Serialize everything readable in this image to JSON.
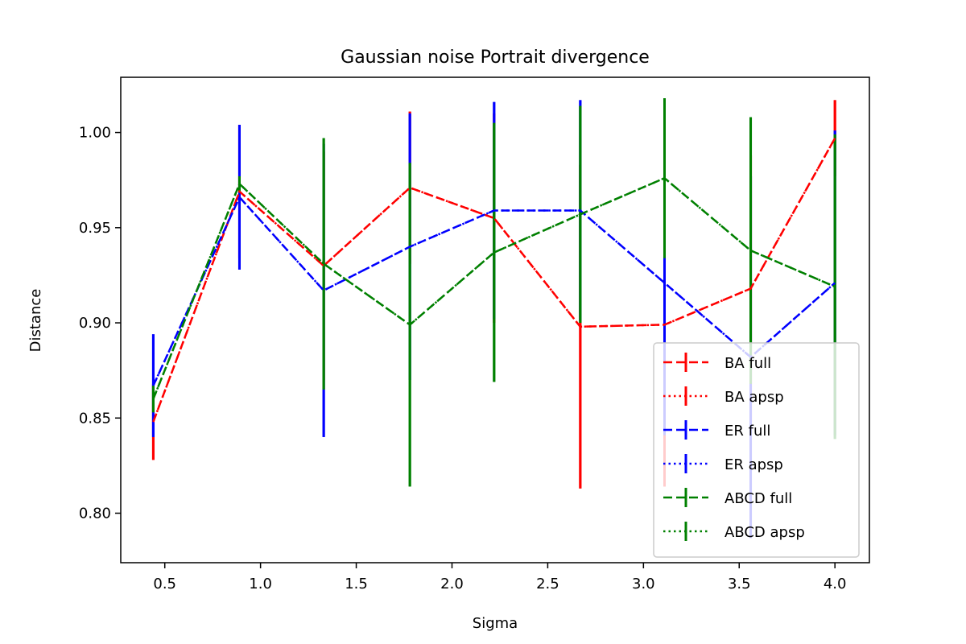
{
  "chart_data": {
    "type": "line",
    "title": "Gaussian noise Portrait divergence",
    "xlabel": "Sigma",
    "ylabel": "Distance",
    "xlim": [
      0.27,
      4.18
    ],
    "ylim": [
      0.774,
      1.029
    ],
    "xticks": [
      0.5,
      1.0,
      1.5,
      2.0,
      2.5,
      3.0,
      3.5,
      4.0
    ],
    "xtick_labels": [
      "0.5",
      "1.0",
      "1.5",
      "2.0",
      "2.5",
      "3.0",
      "3.5",
      "4.0"
    ],
    "yticks": [
      0.8,
      0.85,
      0.9,
      0.95,
      1.0
    ],
    "ytick_labels": [
      "0.80",
      "0.85",
      "0.90",
      "0.95",
      "1.00"
    ],
    "x": [
      0.44,
      0.89,
      1.33,
      1.78,
      2.22,
      2.67,
      3.11,
      3.56,
      4.0
    ],
    "grid": false,
    "legend_position": "lower-right",
    "series": [
      {
        "name": "BA full",
        "color": "#ff0000",
        "linestyle": "dashed",
        "y": [
          0.848,
          0.969,
          0.93,
          0.971,
          0.955,
          0.898,
          0.899,
          0.918,
          0.997
        ],
        "yerr": [
          0.02,
          0.035,
          0.06,
          0.04,
          0.055,
          0.085,
          0.085,
          0.07,
          0.02
        ]
      },
      {
        "name": "BA apsp",
        "color": "#ff0000",
        "linestyle": "dotted",
        "y": [
          0.848,
          0.969,
          0.93,
          0.971,
          0.955,
          0.898,
          0.899,
          0.918,
          0.997
        ],
        "yerr": [
          0.02,
          0.035,
          0.06,
          0.04,
          0.055,
          0.085,
          0.085,
          0.07,
          0.02
        ]
      },
      {
        "name": "ER full",
        "color": "#0000ff",
        "linestyle": "dashed",
        "y": [
          0.867,
          0.966,
          0.917,
          0.94,
          0.959,
          0.959,
          0.921,
          0.882,
          0.921
        ],
        "yerr": [
          0.027,
          0.038,
          0.077,
          0.07,
          0.057,
          0.058,
          0.08,
          0.095,
          0.08
        ]
      },
      {
        "name": "ER apsp",
        "color": "#0000ff",
        "linestyle": "dotted",
        "y": [
          0.867,
          0.966,
          0.917,
          0.94,
          0.959,
          0.959,
          0.921,
          0.882,
          0.921
        ],
        "yerr": [
          0.027,
          0.038,
          0.077,
          0.07,
          0.057,
          0.058,
          0.08,
          0.095,
          0.08
        ]
      },
      {
        "name": "ABCD full",
        "color": "#008000",
        "linestyle": "dashed",
        "y": [
          0.86,
          0.973,
          0.931,
          0.899,
          0.937,
          0.957,
          0.976,
          0.938,
          0.919
        ],
        "yerr": [
          0.007,
          0.004,
          0.066,
          0.085,
          0.068,
          0.057,
          0.042,
          0.07,
          0.08
        ]
      },
      {
        "name": "ABCD apsp",
        "color": "#008000",
        "linestyle": "dotted",
        "y": [
          0.86,
          0.973,
          0.931,
          0.899,
          0.937,
          0.957,
          0.976,
          0.938,
          0.919
        ],
        "yerr": [
          0.007,
          0.004,
          0.066,
          0.085,
          0.068,
          0.057,
          0.042,
          0.07,
          0.08
        ]
      }
    ]
  }
}
